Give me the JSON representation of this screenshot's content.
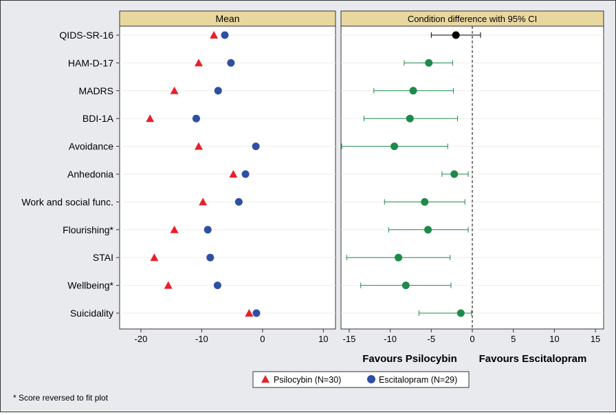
{
  "chart_data": [
    {
      "type": "scatter",
      "title": "Mean",
      "categories": [
        "QIDS-SR-16",
        "HAM-D-17",
        "MADRS",
        "BDI-1A",
        "Avoidance",
        "Anhedonia",
        "Work and social func.",
        "Flourishing*",
        "STAI",
        "Wellbeing*",
        "Suicidality"
      ],
      "series": [
        {
          "name": "Psilocybin (N=30)",
          "marker": "triangle",
          "color": "#e8202a",
          "values": [
            -8,
            -10.5,
            -14.5,
            -18.5,
            -10.5,
            -4.8,
            -9.8,
            -14.5,
            -17.8,
            -15.5,
            -2.2
          ]
        },
        {
          "name": "Escitalopram (N=29)",
          "marker": "circle",
          "color": "#2e4fa3",
          "values": [
            -6.2,
            -5.2,
            -7.3,
            -10.9,
            -1.1,
            -2.8,
            -3.9,
            -9.0,
            -8.6,
            -7.4,
            -1.0
          ]
        }
      ],
      "xlim": [
        -23.5,
        12
      ],
      "xticks": [
        -20,
        -10,
        0,
        10
      ],
      "tick_labels": [
        "-20",
        "-10",
        "0",
        "10"
      ]
    },
    {
      "type": "scatter",
      "title": "Condition difference with 95% CI",
      "categories": [
        "QIDS-SR-16",
        "HAM-D-17",
        "MADRS",
        "BDI-1A",
        "Avoidance",
        "Anhedonia",
        "Work and social func.",
        "Flourishing*",
        "STAI",
        "Wellbeing*",
        "Suicidality"
      ],
      "estimates": [
        -2.0,
        -5.3,
        -7.2,
        -7.6,
        -9.5,
        -2.2,
        -5.8,
        -5.4,
        -9.0,
        -8.1,
        -1.4
      ],
      "ci_low": [
        -5.0,
        -8.3,
        -12.0,
        -13.2,
        -16.0,
        -3.7,
        -10.7,
        -10.2,
        -15.3,
        -13.6,
        -6.5
      ],
      "ci_high": [
        1.0,
        -2.4,
        -2.3,
        -1.8,
        -3.0,
        -0.5,
        -0.9,
        -0.5,
        -2.7,
        -2.6,
        -0.1
      ],
      "point_colors": [
        "#000000",
        "#1e8a4a",
        "#1e8a4a",
        "#1e8a4a",
        "#1e8a4a",
        "#1e8a4a",
        "#1e8a4a",
        "#1e8a4a",
        "#1e8a4a",
        "#1e8a4a",
        "#1e8a4a"
      ],
      "reference_line": 0,
      "xlim": [
        -16,
        16
      ],
      "xticks": [
        -15,
        -10,
        -5,
        0,
        5,
        10,
        15
      ],
      "tick_labels": [
        "-15",
        "-10",
        "-5",
        "0",
        "5",
        "10",
        "15"
      ],
      "xlabel_left": "Favours Psilocybin",
      "xlabel_right": "Favours Escitalopram"
    }
  ],
  "legend": {
    "psilocybin_label": "Psilocybin (N=30)",
    "escitalopram_label": "Escitalopram (N=29)"
  },
  "footnote": "* Score reversed to fit plot",
  "colors": {
    "header_fill": "#e8d8a0",
    "background": "#e9eaed",
    "psilocybin": "#e8202a",
    "escitalopram": "#2e4fa3",
    "difference": "#1e8a4a",
    "difference_first": "#000000"
  }
}
